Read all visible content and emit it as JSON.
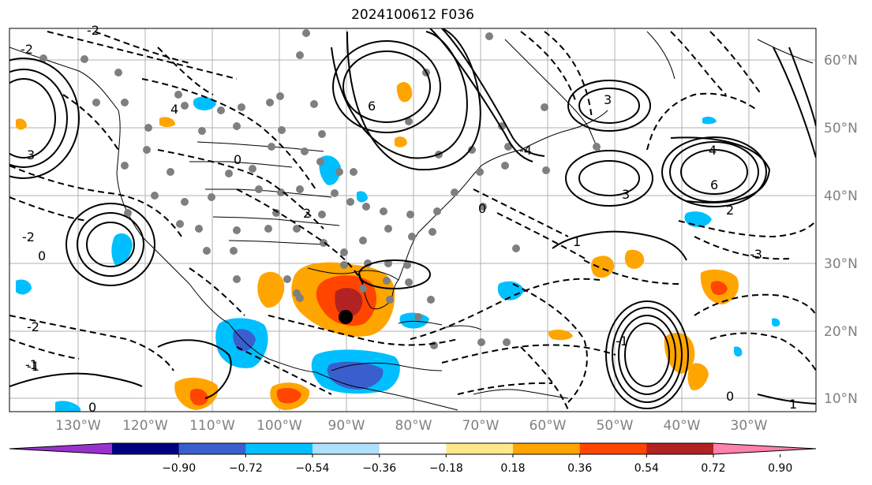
{
  "title": "2024100612 F036",
  "map": {
    "lat_labels": [
      "60°N",
      "50°N",
      "40°N",
      "30°N",
      "20°N",
      "10°N"
    ],
    "lon_labels": [
      "130°W",
      "120°W",
      "110°W",
      "100°W",
      "90°W",
      "80°W",
      "70°W",
      "60°W",
      "50°W",
      "40°W",
      "30°W"
    ],
    "contour_labels": [
      "-2",
      "3",
      "4",
      "6",
      "3",
      "6",
      "4",
      "3",
      "-4",
      "-2",
      "0",
      "1",
      "-1",
      "0",
      "-3",
      "2",
      "1",
      "-1",
      "0",
      "2",
      "-2",
      "-1",
      "0",
      "-2",
      "0"
    ]
  },
  "colorbar": {
    "ticks": [
      "−0.90",
      "−0.72",
      "−0.54",
      "−0.36",
      "−0.18",
      "0.18",
      "0.36",
      "0.54",
      "0.72",
      "0.90"
    ],
    "colors": [
      "#9932cc",
      "#000080",
      "#3a5fcd",
      "#00bfff",
      "#b0e0ff",
      "#ffffff",
      "#ffe88a",
      "#ffa500",
      "#ff4500",
      "#b22222",
      "#ff82ab"
    ]
  }
}
